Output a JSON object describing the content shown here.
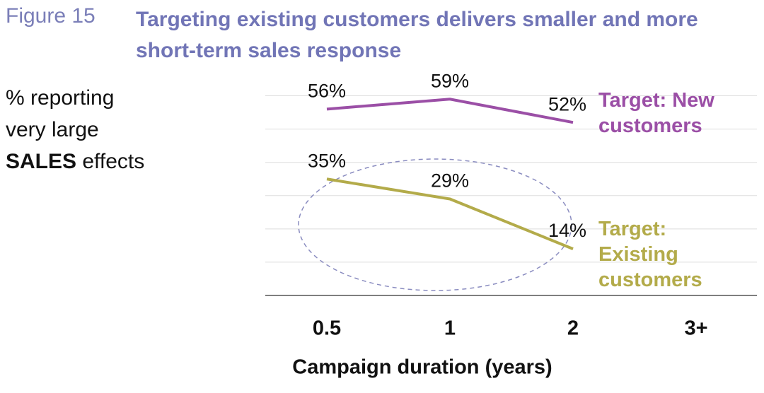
{
  "chart_data": {
    "type": "line",
    "figure_label": "Figure 15",
    "title": "Targeting existing customers delivers smaller and more short-term sales response",
    "y_label_lines": [
      "% reporting",
      "very large"
    ],
    "y_label_emphasis": "SALES",
    "y_label_tail": "effects",
    "x_label": "Campaign duration (years)",
    "categories": [
      "0.5",
      "1",
      "2",
      "3+"
    ],
    "series": [
      {
        "name": "Target: New customers",
        "color": "#9b4fa6",
        "values": [
          56,
          59,
          52,
          null
        ],
        "value_labels": [
          "56%",
          "59%",
          "52%",
          null
        ]
      },
      {
        "name": "Target: Existing customers",
        "color": "#b3ab4a",
        "values": [
          35,
          29,
          14,
          null
        ],
        "value_labels": [
          "35%",
          "29%",
          "14%",
          null
        ]
      }
    ],
    "ylim": [
      0,
      65
    ],
    "yticks": [
      0,
      10,
      20,
      30,
      40,
      50,
      60
    ],
    "grid": true
  }
}
